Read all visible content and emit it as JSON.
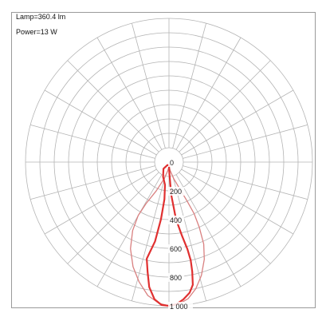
{
  "info": {
    "lamp": "Lamp=360.4 lm",
    "power": "Power=13 W"
  },
  "chart_data": {
    "type": "polar",
    "title": "",
    "radial_ticks": [
      {
        "label": "0",
        "value": 0
      },
      {
        "label": "200",
        "value": 200
      },
      {
        "label": "400",
        "value": 400
      },
      {
        "label": "600",
        "value": 600
      },
      {
        "label": "800",
        "value": 800
      },
      {
        "label": "1 000",
        "value": 1000
      }
    ],
    "r_max": 1000,
    "ring_step": 100,
    "angle_step_deg": 15,
    "grid": true,
    "series": [
      {
        "color": "#e03030",
        "stroke_width": 2.2,
        "points": [
          {
            "angle": 0,
            "value": 1000
          },
          {
            "angle": 3,
            "value": 990
          },
          {
            "angle": 6,
            "value": 960
          },
          {
            "angle": 9,
            "value": 920
          },
          {
            "angle": 11,
            "value": 870
          },
          {
            "angle": 12,
            "value": 780
          },
          {
            "angle": 12.5,
            "value": 700
          },
          {
            "angle": 12,
            "value": 620
          },
          {
            "angle": 10,
            "value": 520
          },
          {
            "angle": 7,
            "value": 400
          },
          {
            "angle": 4,
            "value": 230
          },
          {
            "angle": 2,
            "value": 80
          },
          {
            "angle": 0,
            "value": 20
          },
          {
            "angle": -30,
            "value": 25
          },
          {
            "angle": -40,
            "value": 60
          },
          {
            "angle": -22,
            "value": 110
          },
          {
            "angle": -10,
            "value": 160
          },
          {
            "angle": -7,
            "value": 260
          },
          {
            "angle": -8,
            "value": 400
          },
          {
            "angle": -10,
            "value": 560
          },
          {
            "angle": -13,
            "value": 690
          },
          {
            "angle": -11,
            "value": 780
          },
          {
            "angle": -9,
            "value": 880
          },
          {
            "angle": -6,
            "value": 960
          },
          {
            "angle": -3,
            "value": 995
          },
          {
            "angle": 0,
            "value": 1000
          }
        ]
      },
      {
        "color": "#d98080",
        "stroke_width": 1.3,
        "points": [
          {
            "angle": 0,
            "value": 1000
          },
          {
            "angle": 4,
            "value": 990
          },
          {
            "angle": 8,
            "value": 960
          },
          {
            "angle": 12,
            "value": 900
          },
          {
            "angle": 16,
            "value": 820
          },
          {
            "angle": 20,
            "value": 720
          },
          {
            "angle": 23,
            "value": 620
          },
          {
            "angle": 25,
            "value": 500
          },
          {
            "angle": 26,
            "value": 400
          },
          {
            "angle": 25,
            "value": 300
          },
          {
            "angle": 22,
            "value": 200
          },
          {
            "angle": 16,
            "value": 120
          },
          {
            "angle": 8,
            "value": 60
          },
          {
            "angle": 0,
            "value": 30
          },
          {
            "angle": -8,
            "value": 60
          },
          {
            "angle": -16,
            "value": 120
          },
          {
            "angle": -24,
            "value": 220
          },
          {
            "angle": -29,
            "value": 330
          },
          {
            "angle": -30,
            "value": 430
          },
          {
            "angle": -28,
            "value": 540
          },
          {
            "angle": -24,
            "value": 660
          },
          {
            "angle": -19,
            "value": 770
          },
          {
            "angle": -14,
            "value": 860
          },
          {
            "angle": -9,
            "value": 940
          },
          {
            "angle": -4,
            "value": 985
          },
          {
            "angle": 0,
            "value": 1000
          }
        ]
      }
    ]
  }
}
